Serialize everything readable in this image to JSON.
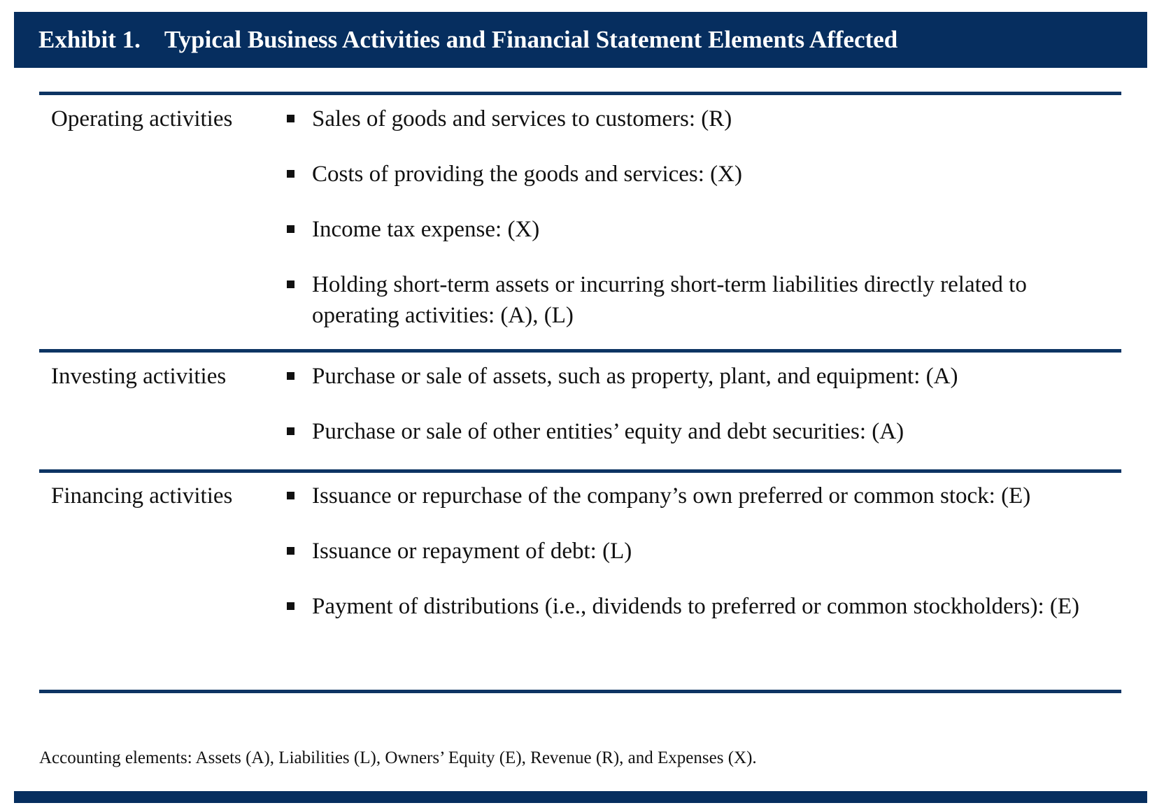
{
  "header": {
    "exhibit_number": "Exhibit 1.",
    "title": "Typical Business Activities and Financial Statement Elements Affected"
  },
  "sections": [
    {
      "category": "Operating activities",
      "items": [
        "Sales of goods and services to customers: (R)",
        "Costs of providing the goods and services: (X)",
        "Income tax expense: (X)",
        "Holding short-term assets or incurring short-term liabilities directly related to operating activities: (A), (L)"
      ]
    },
    {
      "category": "Investing activities",
      "items": [
        "Purchase or sale of assets, such as property, plant, and equipment: (A)",
        "Purchase or sale of other entities’ equity and debt securities: (A)"
      ]
    },
    {
      "category": "Financing activities",
      "items": [
        "Issuance or repurchase of the company’s own preferred or common stock: (E)",
        "Issuance or repayment of debt: (L)",
        "Payment of distributions (i.e., dividends to preferred or common stockholders): (E)"
      ]
    }
  ],
  "footnote": "Accounting elements: Assets (A), Liabilities (L), Owners’ Equity (E), Revenue (R), and Expenses (X).",
  "colors": {
    "header_background": "#062e5f",
    "rule": "#0d3463",
    "text": "#111111"
  }
}
